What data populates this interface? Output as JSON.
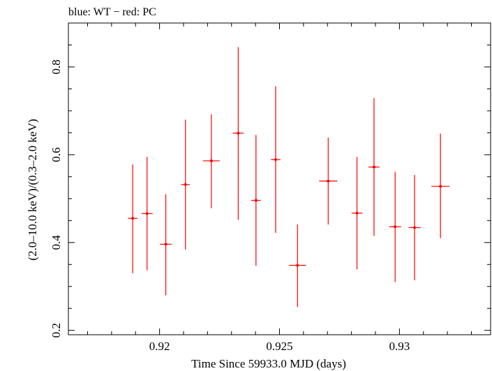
{
  "chart_data": {
    "type": "scatter",
    "title": "blue: WT − red: PC",
    "xlabel": "Time Since 59933.0 MJD (days)",
    "ylabel": "(2.0–10.0 keV)/(0.3–2.0 keV)",
    "xlim": [
      0.9162,
      0.9338
    ],
    "ylim": [
      0.19,
      0.9
    ],
    "x_ticks": [
      {
        "value": 0.92,
        "label": "0.92"
      },
      {
        "value": 0.925,
        "label": "0.925"
      },
      {
        "value": 0.93,
        "label": "0.93"
      }
    ],
    "y_ticks": [
      {
        "value": 0.2,
        "label": "0.2"
      },
      {
        "value": 0.4,
        "label": "0.4"
      },
      {
        "value": 0.6,
        "label": "0.6"
      },
      {
        "value": 0.8,
        "label": "0.8"
      }
    ],
    "grid": false,
    "series": [
      {
        "color": "#ff0000",
        "points": [
          {
            "x": 0.91888,
            "xerr": 0.0002,
            "y": 0.455,
            "yerr_low": 0.125,
            "yerr_high": 0.123
          },
          {
            "x": 0.91948,
            "xerr": 0.00023,
            "y": 0.466,
            "yerr_low": 0.129,
            "yerr_high": 0.129
          },
          {
            "x": 0.92026,
            "xerr": 0.00025,
            "y": 0.396,
            "yerr_low": 0.116,
            "yerr_high": 0.114
          },
          {
            "x": 0.92108,
            "xerr": 0.00018,
            "y": 0.532,
            "yerr_low": 0.148,
            "yerr_high": 0.148
          },
          {
            "x": 0.92216,
            "xerr": 0.00035,
            "y": 0.586,
            "yerr_low": 0.108,
            "yerr_high": 0.106
          },
          {
            "x": 0.92328,
            "xerr": 0.00023,
            "y": 0.649,
            "yerr_low": 0.197,
            "yerr_high": 0.196
          },
          {
            "x": 0.92402,
            "xerr": 0.0002,
            "y": 0.496,
            "yerr_low": 0.149,
            "yerr_high": 0.149
          },
          {
            "x": 0.92484,
            "xerr": 0.0002,
            "y": 0.589,
            "yerr_low": 0.167,
            "yerr_high": 0.167
          },
          {
            "x": 0.92575,
            "xerr": 0.00035,
            "y": 0.348,
            "yerr_low": 0.095,
            "yerr_high": 0.093
          },
          {
            "x": 0.92703,
            "xerr": 0.00038,
            "y": 0.54,
            "yerr_low": 0.099,
            "yerr_high": 0.099
          },
          {
            "x": 0.92823,
            "xerr": 0.00023,
            "y": 0.467,
            "yerr_low": 0.128,
            "yerr_high": 0.128
          },
          {
            "x": 0.92894,
            "xerr": 0.00023,
            "y": 0.572,
            "yerr_low": 0.157,
            "yerr_high": 0.157
          },
          {
            "x": 0.92982,
            "xerr": 0.00025,
            "y": 0.436,
            "yerr_low": 0.126,
            "yerr_high": 0.125
          },
          {
            "x": 0.93063,
            "xerr": 0.00025,
            "y": 0.434,
            "yerr_low": 0.12,
            "yerr_high": 0.12
          },
          {
            "x": 0.93171,
            "xerr": 0.00038,
            "y": 0.528,
            "yerr_low": 0.118,
            "yerr_high": 0.12
          }
        ]
      }
    ]
  }
}
